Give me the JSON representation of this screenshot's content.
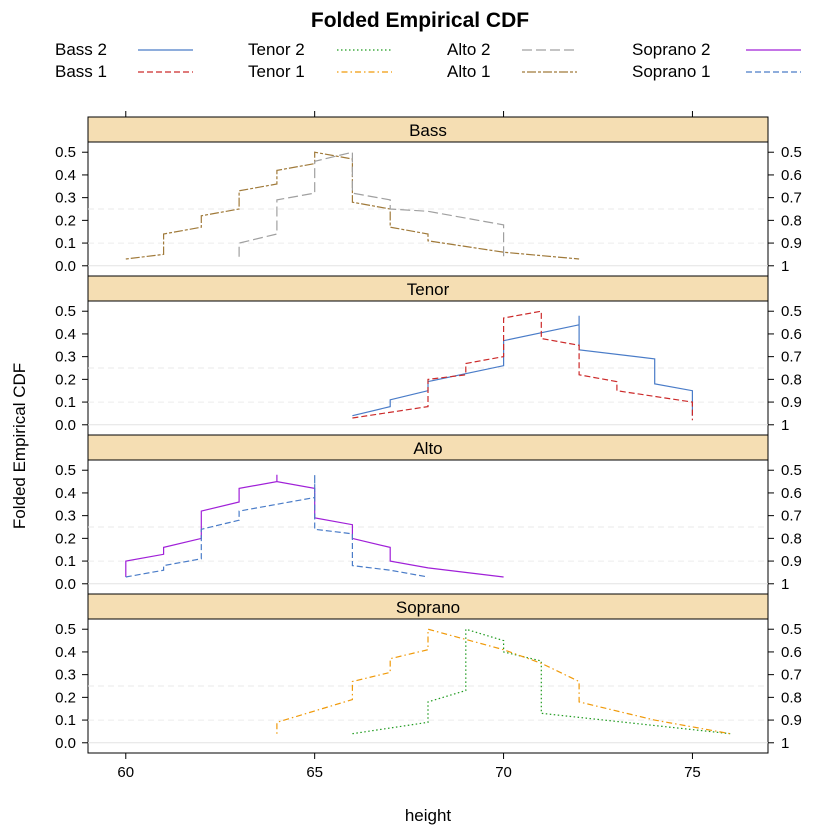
{
  "chart_data": {
    "type": "line",
    "title": "Folded Empirical CDF",
    "xlabel": "height",
    "ylabel": "Folded Empirical CDF",
    "xlim": [
      59,
      77
    ],
    "ylim": [
      0,
      0.5
    ],
    "x_ticks": [
      "60",
      "65",
      "70",
      "75"
    ],
    "y_ticks_left": [
      "0.0",
      "0.1",
      "0.2",
      "0.3",
      "0.4",
      "0.5"
    ],
    "y_ticks_right": [
      "1",
      "0.9",
      "0.8",
      "0.7",
      "0.6",
      "0.5"
    ],
    "reference_line_y": 0.25,
    "grid": false,
    "strip_color": "#F5DEB3",
    "legend": {
      "placement": "top",
      "entries": [
        {
          "name": "Bass 2",
          "color": "#4A7CC8",
          "dash": "solid"
        },
        {
          "name": "Bass 1",
          "color": "#CC2A2A",
          "dash": "dashed"
        },
        {
          "name": "Tenor 2",
          "color": "#1E9A1E",
          "dash": "dotted"
        },
        {
          "name": "Tenor 1",
          "color": "#F09A0A",
          "dash": "dotdash"
        },
        {
          "name": "Alto 2",
          "color": "#A0A0A0",
          "dash": "longdash"
        },
        {
          "name": "Alto 1",
          "color": "#A07A3A",
          "dash": "twodash"
        },
        {
          "name": "Soprano 2",
          "color": "#A020D8",
          "dash": "solid"
        },
        {
          "name": "Soprano 1",
          "color": "#4A7CC8",
          "dash": "dashed"
        }
      ]
    },
    "panels": [
      {
        "name": "Bass",
        "series": [
          {
            "name": "Alto 1",
            "points": [
              [
                60,
                0.03
              ],
              [
                61,
                0.05
              ],
              [
                61,
                0.14
              ],
              [
                62,
                0.17
              ],
              [
                62,
                0.22
              ],
              [
                63,
                0.25
              ],
              [
                63,
                0.33
              ],
              [
                64,
                0.36
              ],
              [
                64,
                0.42
              ],
              [
                65,
                0.45
              ],
              [
                65,
                0.5
              ],
              [
                66,
                0.47
              ],
              [
                66,
                0.28
              ],
              [
                67,
                0.25
              ],
              [
                67,
                0.17
              ],
              [
                68,
                0.14
              ],
              [
                68,
                0.11
              ],
              [
                70,
                0.06
              ],
              [
                72,
                0.03
              ]
            ]
          },
          {
            "name": "Alto 2",
            "points": [
              [
                63,
                0.04
              ],
              [
                63,
                0.1
              ],
              [
                64,
                0.14
              ],
              [
                64,
                0.29
              ],
              [
                65,
                0.32
              ],
              [
                65,
                0.46
              ],
              [
                66,
                0.5
              ],
              [
                66,
                0.32
              ],
              [
                67,
                0.29
              ],
              [
                67,
                0.25
              ],
              [
                68,
                0.24
              ],
              [
                70,
                0.18
              ],
              [
                70,
                0.04
              ]
            ]
          }
        ]
      },
      {
        "name": "Tenor",
        "series": [
          {
            "name": "Bass 2",
            "points": [
              [
                66,
                0.04
              ],
              [
                67,
                0.08
              ],
              [
                67,
                0.11
              ],
              [
                68,
                0.15
              ],
              [
                68,
                0.19
              ],
              [
                70,
                0.26
              ],
              [
                70,
                0.37
              ],
              [
                72,
                0.44
              ],
              [
                72,
                0.48
              ],
              [
                72,
                0.33
              ],
              [
                74,
                0.29
              ],
              [
                74,
                0.18
              ],
              [
                75,
                0.15
              ],
              [
                75,
                0.04
              ]
            ]
          },
          {
            "name": "Bass 1",
            "points": [
              [
                66,
                0.03
              ],
              [
                68,
                0.08
              ],
              [
                68,
                0.2
              ],
              [
                69,
                0.22
              ],
              [
                69,
                0.27
              ],
              [
                70,
                0.3
              ],
              [
                70,
                0.47
              ],
              [
                71,
                0.5
              ],
              [
                71,
                0.38
              ],
              [
                72,
                0.35
              ],
              [
                72,
                0.22
              ],
              [
                73,
                0.19
              ],
              [
                73,
                0.15
              ],
              [
                75,
                0.1
              ],
              [
                75,
                0.02
              ]
            ]
          }
        ]
      },
      {
        "name": "Alto",
        "series": [
          {
            "name": "Soprano 2",
            "points": [
              [
                60,
                0.03
              ],
              [
                60,
                0.1
              ],
              [
                61,
                0.13
              ],
              [
                61,
                0.16
              ],
              [
                62,
                0.2
              ],
              [
                62,
                0.32
              ],
              [
                63,
                0.36
              ],
              [
                63,
                0.42
              ],
              [
                64,
                0.45
              ],
              [
                64,
                0.48
              ],
              [
                64,
                0.45
              ],
              [
                65,
                0.42
              ],
              [
                65,
                0.29
              ],
              [
                66,
                0.26
              ],
              [
                66,
                0.2
              ],
              [
                67,
                0.16
              ],
              [
                67,
                0.1
              ],
              [
                68,
                0.07
              ],
              [
                70,
                0.03
              ]
            ]
          },
          {
            "name": "Soprano 1",
            "points": [
              [
                60,
                0.03
              ],
              [
                61,
                0.06
              ],
              [
                61,
                0.08
              ],
              [
                62,
                0.11
              ],
              [
                62,
                0.24
              ],
              [
                63,
                0.28
              ],
              [
                63,
                0.32
              ],
              [
                65,
                0.38
              ],
              [
                65,
                0.48
              ],
              [
                65,
                0.24
              ],
              [
                66,
                0.22
              ],
              [
                66,
                0.08
              ],
              [
                67,
                0.06
              ],
              [
                68,
                0.03
              ]
            ]
          }
        ]
      },
      {
        "name": "Soprano",
        "series": [
          {
            "name": "Tenor 2",
            "points": [
              [
                66,
                0.04
              ],
              [
                68,
                0.09
              ],
              [
                68,
                0.18
              ],
              [
                69,
                0.23
              ],
              [
                69,
                0.5
              ],
              [
                70,
                0.45
              ],
              [
                70,
                0.4
              ],
              [
                71,
                0.36
              ],
              [
                71,
                0.13
              ],
              [
                76,
                0.04
              ]
            ]
          },
          {
            "name": "Tenor 1",
            "points": [
              [
                64,
                0.04
              ],
              [
                64,
                0.09
              ],
              [
                66,
                0.19
              ],
              [
                66,
                0.27
              ],
              [
                67,
                0.31
              ],
              [
                67,
                0.37
              ],
              [
                68,
                0.41
              ],
              [
                68,
                0.5
              ],
              [
                70,
                0.41
              ],
              [
                71,
                0.35
              ],
              [
                72,
                0.27
              ],
              [
                72,
                0.18
              ],
              [
                74,
                0.1
              ],
              [
                76,
                0.04
              ]
            ]
          }
        ]
      }
    ]
  }
}
